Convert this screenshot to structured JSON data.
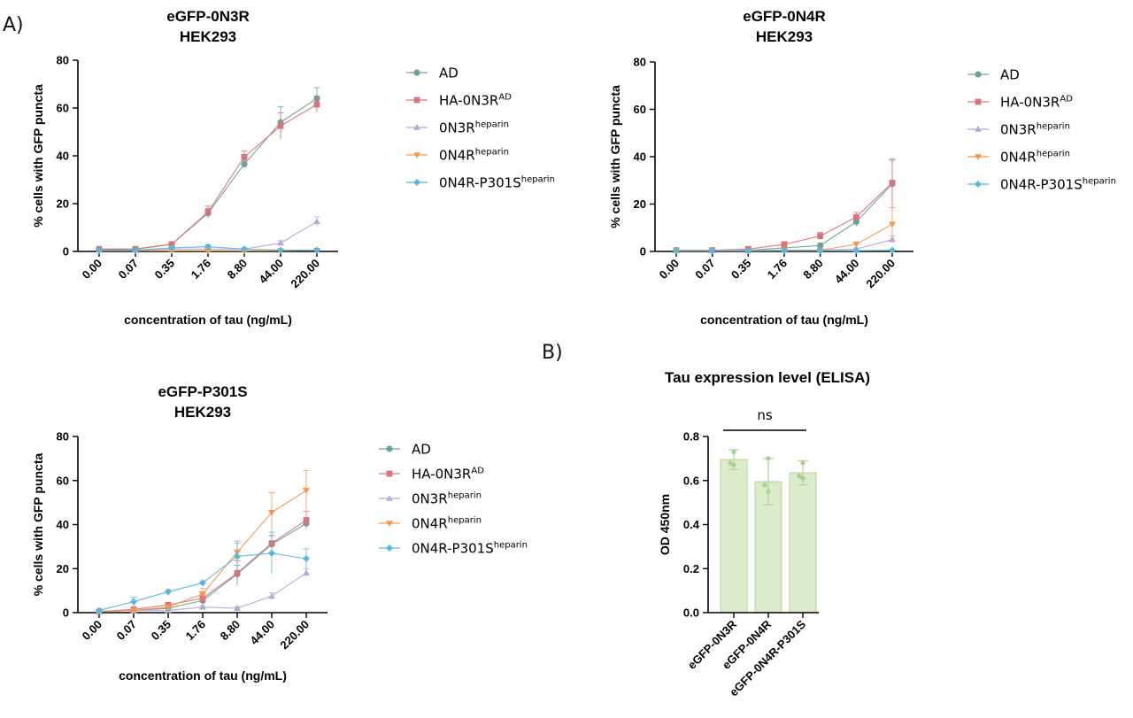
{
  "panel_labels": {
    "a": "A)",
    "b": "B)"
  },
  "colors": {
    "AD": "#6aa39c",
    "HA-0N3R^AD": "#d9747c",
    "0N3R^heparin": "#b6a8d6",
    "0N4R^heparin": "#f09a4e",
    "0N4R-P301S^heparin": "#58b7da",
    "bar_fill": "#dcebcc",
    "bar_stroke": "#b3d493",
    "bar_dot": "#a9d08a"
  },
  "legend": [
    {
      "base": "AD",
      "sup": "",
      "marker": "circle"
    },
    {
      "base": "HA-0N3R",
      "sup": "AD",
      "marker": "square"
    },
    {
      "base": "0N3R",
      "sup": "heparin",
      "marker": "triangle-up"
    },
    {
      "base": "0N4R",
      "sup": "heparin",
      "marker": "triangle-down"
    },
    {
      "base": "0N4R-P301S",
      "sup": "heparin",
      "marker": "diamond"
    }
  ],
  "chart_data": [
    {
      "type": "line",
      "title": "eGFP-0N3R",
      "subtitle": "HEK293",
      "xlabel": "concentration of tau (ng/mL)",
      "ylabel": "% cells with GFP puncta",
      "x": [
        "0.00",
        "0.07",
        "0.35",
        "1.76",
        "8.80",
        "44.00",
        "220.00"
      ],
      "yticks": [
        "0",
        "20",
        "40",
        "60",
        "80"
      ],
      "ylim": [
        0,
        80
      ],
      "series": [
        {
          "name": "AD",
          "values": [
            1.0,
            1.0,
            3.0,
            16.0,
            36.5,
            54.0,
            64.0
          ],
          "err": [
            0.4,
            0.4,
            0.8,
            2.0,
            1.5,
            6.5,
            4.5
          ]
        },
        {
          "name": "HA-0N3R^AD",
          "values": [
            1.0,
            1.0,
            3.0,
            16.5,
            39.5,
            52.5,
            61.5
          ],
          "err": [
            0.4,
            0.4,
            0.8,
            2.5,
            2.5,
            5.5,
            3.5
          ]
        },
        {
          "name": "0N3R^heparin",
          "values": [
            0.5,
            0.5,
            1.0,
            1.0,
            1.0,
            3.5,
            12.5
          ],
          "err": [
            0.3,
            0.3,
            0.5,
            0.5,
            0.5,
            1.0,
            2.0
          ]
        },
        {
          "name": "0N4R^heparin",
          "values": [
            0.3,
            0.3,
            0.3,
            0.3,
            0.3,
            0.3,
            0.5
          ],
          "err": [
            0.2,
            0.2,
            0.2,
            0.2,
            0.2,
            0.2,
            0.3
          ]
        },
        {
          "name": "0N4R-P301S^heparin",
          "values": [
            0.5,
            0.5,
            1.5,
            2.0,
            1.0,
            0.5,
            0.5
          ],
          "err": [
            0.3,
            0.3,
            0.5,
            0.8,
            0.5,
            0.3,
            0.3
          ]
        }
      ]
    },
    {
      "type": "line",
      "title": "eGFP-0N4R",
      "subtitle": "HEK293",
      "xlabel": "concentration of tau (ng/mL)",
      "ylabel": "% cells with GFP puncta",
      "x": [
        "0.00",
        "0.07",
        "0.35",
        "1.76",
        "8.80",
        "44.00",
        "220.00"
      ],
      "yticks": [
        "0",
        "20",
        "40",
        "60",
        "80"
      ],
      "ylim": [
        0,
        80
      ],
      "series": [
        {
          "name": "AD",
          "values": [
            0.5,
            0.5,
            0.5,
            1.5,
            2.5,
            12.5,
            28.5
          ],
          "err": [
            0.3,
            0.3,
            0.3,
            0.8,
            1.0,
            2.0,
            10.0
          ]
        },
        {
          "name": "HA-0N3R^AD",
          "values": [
            0.5,
            0.5,
            1.0,
            3.0,
            6.5,
            14.5,
            29.0
          ],
          "err": [
            0.3,
            0.3,
            0.5,
            1.0,
            1.5,
            2.0,
            10.0
          ]
        },
        {
          "name": "0N3R^heparin",
          "values": [
            0.3,
            0.3,
            0.3,
            0.5,
            0.5,
            1.0,
            5.0
          ],
          "err": [
            0.2,
            0.2,
            0.2,
            0.3,
            0.3,
            0.5,
            1.5
          ]
        },
        {
          "name": "0N4R^heparin",
          "values": [
            0.3,
            0.3,
            0.3,
            0.5,
            0.5,
            3.0,
            11.5
          ],
          "err": [
            0.2,
            0.2,
            0.2,
            0.3,
            0.3,
            1.0,
            7.0
          ]
        },
        {
          "name": "0N4R-P301S^heparin",
          "values": [
            0.3,
            0.3,
            0.3,
            0.3,
            0.3,
            0.3,
            0.5
          ],
          "err": [
            0.2,
            0.2,
            0.2,
            0.2,
            0.2,
            0.2,
            0.3
          ]
        }
      ]
    },
    {
      "type": "line",
      "title": "eGFP-P301S",
      "subtitle": "HEK293",
      "xlabel": "concentration of tau (ng/mL)",
      "ylabel": "% cells with GFP puncta",
      "x": [
        "0.00",
        "0.07",
        "0.35",
        "1.76",
        "8.80",
        "44.00",
        "220.00"
      ],
      "yticks": [
        "0",
        "20",
        "40",
        "60",
        "80"
      ],
      "ylim": [
        0,
        80
      ],
      "series": [
        {
          "name": "AD",
          "values": [
            0.5,
            1.0,
            2.0,
            5.5,
            17.5,
            31.0,
            40.5
          ],
          "err": [
            0.3,
            0.5,
            0.8,
            1.5,
            4.0,
            4.0,
            2.5
          ]
        },
        {
          "name": "HA-0N3R^AD",
          "values": [
            0.5,
            1.5,
            3.5,
            6.5,
            18.0,
            31.5,
            42.0
          ],
          "err": [
            0.3,
            0.5,
            1.0,
            2.0,
            5.5,
            3.5,
            4.0
          ]
        },
        {
          "name": "0N3R^heparin",
          "values": [
            0.5,
            1.0,
            1.0,
            2.5,
            2.0,
            7.5,
            18.0
          ],
          "err": [
            0.3,
            0.5,
            0.5,
            0.8,
            0.8,
            1.5,
            2.0
          ]
        },
        {
          "name": "0N4R^heparin",
          "values": [
            0.5,
            1.0,
            2.5,
            8.5,
            27.5,
            45.5,
            55.5
          ],
          "err": [
            0.3,
            0.5,
            1.0,
            2.5,
            4.0,
            9.0,
            9.0
          ]
        },
        {
          "name": "0N4R-P301S^heparin",
          "values": [
            1.0,
            5.0,
            9.5,
            13.5,
            25.5,
            27.0,
            24.5
          ],
          "err": [
            0.5,
            2.0,
            1.0,
            1.0,
            7.0,
            9.5,
            4.5
          ]
        }
      ]
    },
    {
      "type": "bar",
      "title": "Tau expression level (ELISA)",
      "ylabel": "OD 450nm",
      "categories": [
        "eGFP-0N3R",
        "eGFP-0N4R",
        "eGFP-0N4R-P301S"
      ],
      "values": [
        0.695,
        0.595,
        0.635
      ],
      "err": [
        0.045,
        0.105,
        0.055
      ],
      "points": [
        [
          0.73,
          0.68,
          0.67
        ],
        [
          0.7,
          0.58,
          0.55
        ],
        [
          0.68,
          0.62,
          0.61
        ]
      ],
      "yticks": [
        "0.0",
        "0.2",
        "0.4",
        "0.6",
        "0.8"
      ],
      "ylim": [
        0,
        0.8
      ],
      "significance": "ns"
    }
  ]
}
